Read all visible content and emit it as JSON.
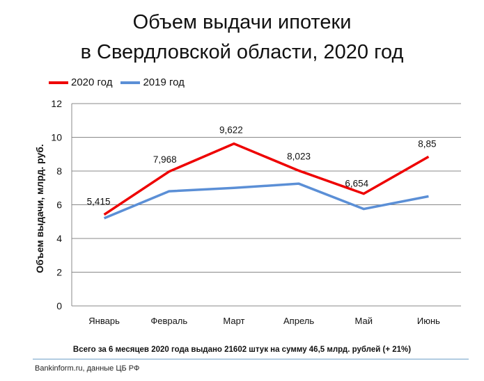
{
  "title_line1": "Объем выдачи ипотеки",
  "title_line2": "в Свердловской области, 2020 год",
  "legend": [
    {
      "label": "2020 год",
      "color": "#ee0000"
    },
    {
      "label": "2019 год",
      "color": "#5b8fd6"
    }
  ],
  "note": "Всего за 6 месяцев 2020 года  выдано 21602 штук на сумму 46,5 млрд.  рублей  (+ 21%)",
  "source": "Bankinform.ru,  данные ЦБ РФ",
  "chart_data": {
    "type": "line",
    "title": "Объем выдачи ипотеки в Свердловской области, 2020 год",
    "ylabel": "Объем выдачи, млрд. руб.",
    "xlabel": "",
    "ylim": [
      0,
      12
    ],
    "yticks": [
      "0",
      "2",
      "4",
      "6",
      "8",
      "10",
      "12"
    ],
    "grid": true,
    "legend_position": "top-left",
    "categories": [
      "Январь",
      "Февраль",
      "Март",
      "Апрель",
      "Май",
      "Июнь"
    ],
    "series": [
      {
        "name": "2020 год",
        "color": "#ee0000",
        "values": [
          5.415,
          7.968,
          9.622,
          8.023,
          6.654,
          8.85
        ],
        "labels": [
          "5,415",
          "7,968",
          "9,622",
          "8,023",
          "6,654",
          "8,85"
        ]
      },
      {
        "name": "2019 год",
        "color": "#5b8fd6",
        "values": [
          5.2,
          6.8,
          7.0,
          7.25,
          5.75,
          6.5
        ]
      }
    ]
  }
}
